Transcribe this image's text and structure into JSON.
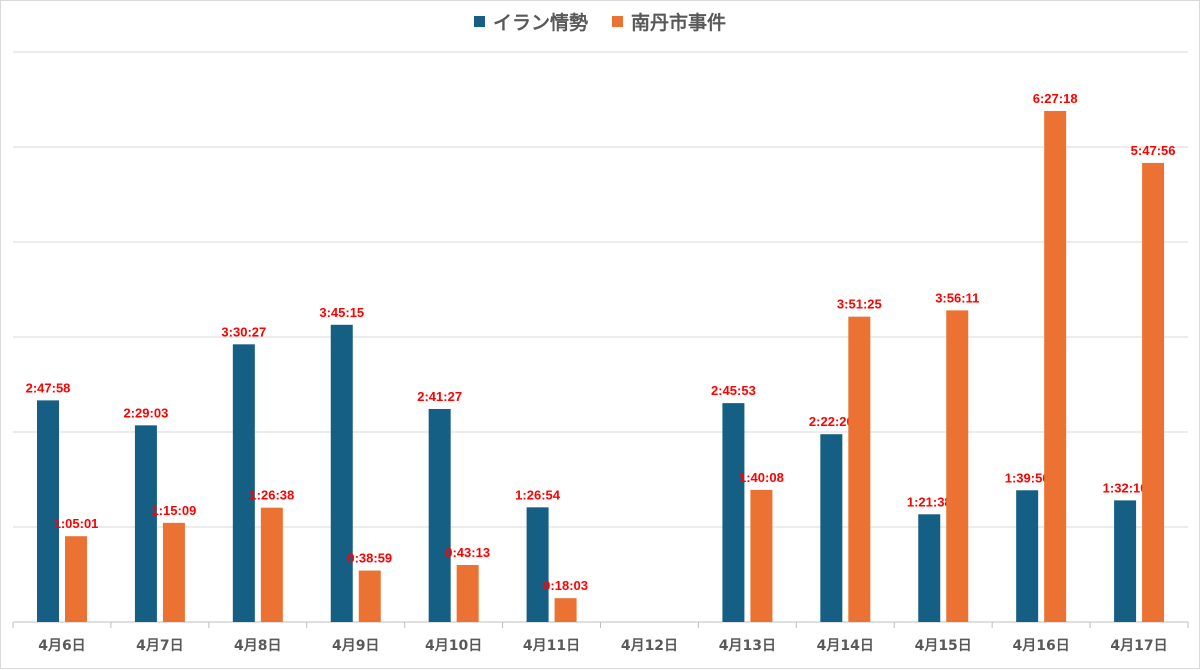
{
  "chart_data": {
    "type": "bar",
    "title": "",
    "xlabel": "",
    "ylabel": "",
    "categories": [
      "4月6日",
      "4月7日",
      "4月8日",
      "4月9日",
      "4月10日",
      "4月11日",
      "4月12日",
      "4月13日",
      "4月14日",
      "4月15日",
      "4月16日",
      "4月17日"
    ],
    "series": [
      {
        "name": "イラン情勢",
        "color": "#155E84",
        "values": [
          "2:47:58",
          "2:29:03",
          "3:30:27",
          "3:45:15",
          "2:41:27",
          "1:26:54",
          null,
          "2:45:53",
          "2:22:20",
          "1:21:38",
          "1:39:50",
          "1:32:10"
        ]
      },
      {
        "name": "南丹市事件",
        "color": "#EB7232",
        "values": [
          "1:05:01",
          "1:15:09",
          "1:26:38",
          "0:38:59",
          "0:43:13",
          "0:18:03",
          null,
          "1:40:08",
          "3:51:25",
          "3:56:11",
          "6:27:18",
          "5:47:56"
        ]
      }
    ],
    "value_format": "h:mm:ss",
    "ylim": [
      "0:00:00",
      "7:12:00"
    ],
    "y_major_unit": "1:12:00",
    "y_tick_labels_shown": false,
    "grid": true,
    "legend": "top",
    "data_label_color": "#FF0000"
  }
}
